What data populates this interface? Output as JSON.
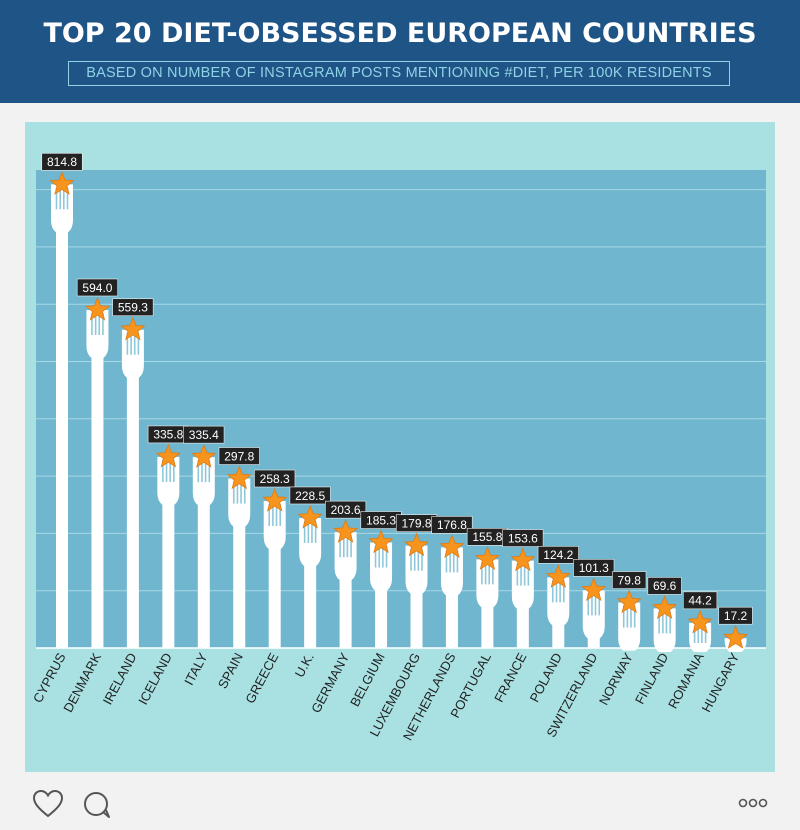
{
  "header": {
    "title": "TOP 20 DIET-OBSESSED EUROPEAN COUNTRIES",
    "subtitle": "BASED ON NUMBER OF INSTAGRAM POSTS MENTIONING #DIET, PER 100K RESIDENTS"
  },
  "chart_data": {
    "type": "bar",
    "title": "TOP 20 DIET-OBSESSED EUROPEAN COUNTRIES",
    "subtitle": "BASED ON NUMBER OF INSTAGRAM POSTS MENTIONING #DIET, PER 100K RESIDENTS",
    "categories": [
      "CYPRUS",
      "DENMARK",
      "IRELAND",
      "ICELAND",
      "ITALY",
      "SPAIN",
      "GREECE",
      "U.K.",
      "GERMANY",
      "BELGIUM",
      "LUXEMBOURG",
      "NETHERLANDS",
      "PORTUGAL",
      "FRANCE",
      "POLAND",
      "SWITZERLAND",
      "NORWAY",
      "FINLAND",
      "ROMANIA",
      "HUNGARY"
    ],
    "values": [
      814.8,
      594.0,
      559.3,
      335.8,
      335.4,
      297.8,
      258.3,
      228.5,
      203.6,
      185.3,
      179.8,
      176.8,
      155.8,
      153.6,
      124.2,
      101.3,
      79.8,
      69.6,
      44.2,
      17.2
    ],
    "value_labels": [
      "814.8",
      "594.0",
      "559.3",
      "335.8",
      "335.4",
      "297.8",
      "258.3",
      "228.5",
      "203.6",
      "185.3",
      "179.8",
      "176.8",
      "155.8",
      "153.6",
      "124.2",
      "101.3",
      "79.8",
      "69.6",
      "44.2",
      "17.2"
    ],
    "ylim": [
      0,
      840
    ],
    "grid": true,
    "xlabel": "",
    "ylabel": ""
  },
  "colors": {
    "header_bg": "#1f5486",
    "plot_bg": "#70b6cf",
    "card_bg": "#a9e1e3",
    "fork": "#ffffff",
    "tine_gap": "#8ec7d9",
    "star": "#f7941d",
    "label_bg": "#222222",
    "label_text": "#ffffff"
  },
  "footer": {
    "like_icon": "heart-icon",
    "comment_icon": "comment-icon",
    "more_icon": "more-icon"
  }
}
